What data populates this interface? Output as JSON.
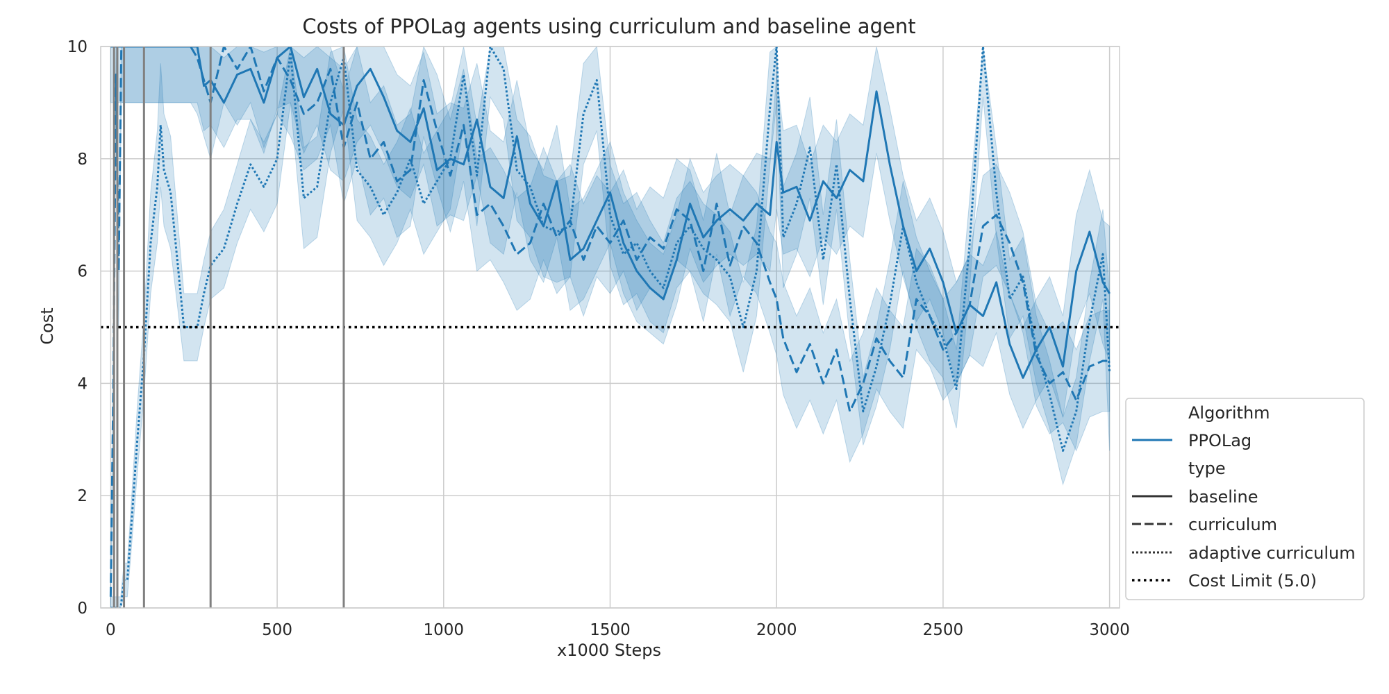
{
  "chart_data": {
    "type": "line",
    "title": "Costs of PPOLag agents using curriculum and baseline agent",
    "xlabel": "x1000 Steps",
    "ylabel": "Cost",
    "xlim": [
      -30,
      3030
    ],
    "ylim": [
      0,
      10
    ],
    "x_ticks": [
      0,
      500,
      1000,
      1500,
      2000,
      2500,
      3000
    ],
    "y_ticks": [
      0,
      2,
      4,
      6,
      8,
      10
    ],
    "grid": true,
    "legend_position": "lower-right outside",
    "color": "#1f77b4",
    "band_opacity": 0.2,
    "cost_limit": 5.0,
    "curriculum_switch_x": [
      10,
      20,
      40,
      100,
      300,
      700
    ],
    "series": [
      {
        "name": "baseline",
        "line_style": "solid",
        "x": [
          0,
          10,
          20,
          30,
          40,
          60,
          80,
          100,
          150,
          200,
          240,
          260,
          280,
          300,
          340,
          380,
          420,
          460,
          500,
          540,
          580,
          620,
          660,
          700,
          740,
          780,
          820,
          860,
          900,
          940,
          980,
          1020,
          1060,
          1100,
          1140,
          1180,
          1220,
          1260,
          1300,
          1340,
          1380,
          1420,
          1460,
          1500,
          1540,
          1580,
          1620,
          1660,
          1700,
          1740,
          1780,
          1820,
          1860,
          1900,
          1940,
          1980,
          2000,
          2020,
          2060,
          2100,
          2140,
          2180,
          2220,
          2260,
          2300,
          2340,
          2380,
          2420,
          2460,
          2500,
          2540,
          2580,
          2620,
          2660,
          2700,
          2740,
          2780,
          2820,
          2860,
          2900,
          2940,
          2980,
          3000
        ],
        "y": [
          10,
          10,
          10,
          10,
          10,
          10,
          10,
          10,
          10,
          10,
          10,
          10,
          9.3,
          9.4,
          9.0,
          9.5,
          9.6,
          9.0,
          9.8,
          10.0,
          9.1,
          9.6,
          8.8,
          8.6,
          9.3,
          9.6,
          9.1,
          8.5,
          8.3,
          8.9,
          7.8,
          8.0,
          7.9,
          8.7,
          7.5,
          7.3,
          8.4,
          7.2,
          6.8,
          7.6,
          6.2,
          6.4,
          6.9,
          7.4,
          6.5,
          6.0,
          5.7,
          5.5,
          6.2,
          7.2,
          6.6,
          6.9,
          7.1,
          6.9,
          7.2,
          7.0,
          8.3,
          7.4,
          7.5,
          6.9,
          7.6,
          7.3,
          7.8,
          7.6,
          9.2,
          7.9,
          6.8,
          6.0,
          6.4,
          5.8,
          4.9,
          5.4,
          5.2,
          5.8,
          4.7,
          4.1,
          4.6,
          5.0,
          4.3,
          6.0,
          6.7,
          5.8,
          5.6
        ],
        "band": [
          1.0,
          1.0,
          1.0,
          1.0,
          1.0,
          1.0,
          1.0,
          1.0,
          1.0,
          1.0,
          1.0,
          1.0,
          0.8,
          0.8,
          0.8,
          0.8,
          0.9,
          0.9,
          0.9,
          1.0,
          1.0,
          1.0,
          1.0,
          1.0,
          1.0,
          1.0,
          1.0,
          1.0,
          1.0,
          1.0,
          1.0,
          1.0,
          1.0,
          1.0,
          1.0,
          1.0,
          1.0,
          1.0,
          1.0,
          1.0,
          0.9,
          0.9,
          0.9,
          0.9,
          0.9,
          0.9,
          0.8,
          0.8,
          0.8,
          0.8,
          0.8,
          0.8,
          0.8,
          0.8,
          0.9,
          1.0,
          1.2,
          1.1,
          1.1,
          1.0,
          1.0,
          1.0,
          1.0,
          1.0,
          1.1,
          1.0,
          0.9,
          0.9,
          0.9,
          0.9,
          0.9,
          0.9,
          0.9,
          0.9,
          0.9,
          0.9,
          0.9,
          0.9,
          0.9,
          1.0,
          1.1,
          1.1,
          1.2
        ]
      },
      {
        "name": "curriculum",
        "line_style": "dashed",
        "x": [
          0,
          8,
          16,
          24,
          32,
          40,
          60,
          80,
          100,
          150,
          200,
          240,
          260,
          280,
          300,
          340,
          380,
          420,
          460,
          500,
          540,
          580,
          620,
          660,
          700,
          740,
          780,
          820,
          860,
          900,
          940,
          980,
          1020,
          1060,
          1100,
          1140,
          1180,
          1220,
          1260,
          1300,
          1340,
          1380,
          1420,
          1460,
          1500,
          1540,
          1580,
          1620,
          1660,
          1700,
          1740,
          1780,
          1820,
          1860,
          1900,
          1940,
          1980,
          2000,
          2020,
          2060,
          2100,
          2140,
          2180,
          2220,
          2260,
          2300,
          2340,
          2380,
          2420,
          2460,
          2500,
          2540,
          2580,
          2620,
          2660,
          2700,
          2740,
          2780,
          2820,
          2860,
          2900,
          2940,
          2980,
          3000
        ],
        "y": [
          0.2,
          4.0,
          9.5,
          6.0,
          10,
          10,
          10,
          10,
          10,
          10,
          10,
          10,
          9.8,
          9.4,
          9.0,
          10,
          9.6,
          10,
          9.2,
          9.8,
          9.4,
          8.8,
          9.0,
          9.6,
          8.2,
          9.0,
          8.0,
          8.3,
          7.6,
          7.8,
          9.4,
          8.5,
          7.7,
          8.6,
          7.0,
          7.2,
          6.8,
          6.3,
          6.5,
          7.2,
          6.6,
          6.9,
          6.2,
          6.8,
          6.5,
          6.9,
          6.2,
          6.6,
          6.4,
          7.1,
          6.9,
          6.0,
          7.2,
          6.1,
          6.8,
          6.5,
          5.8,
          5.5,
          4.8,
          4.2,
          4.7,
          4.0,
          4.6,
          3.5,
          4.0,
          4.8,
          4.4,
          4.1,
          5.5,
          5.2,
          4.6,
          4.9,
          5.4,
          6.8,
          7.0,
          6.5,
          5.8,
          4.5,
          4.0,
          4.2,
          3.7,
          4.3,
          4.4,
          4.4
        ],
        "band": [
          0.3,
          1.0,
          1.0,
          1.0,
          1.0,
          1.0,
          1.0,
          1.0,
          1.0,
          1.0,
          1.0,
          1.0,
          1.0,
          1.0,
          1.0,
          1.0,
          1.0,
          1.0,
          1.0,
          1.0,
          1.0,
          1.0,
          1.0,
          1.0,
          1.0,
          1.0,
          1.0,
          1.0,
          1.0,
          1.0,
          1.0,
          1.0,
          1.0,
          1.0,
          1.0,
          1.0,
          1.0,
          1.0,
          1.0,
          1.0,
          1.0,
          1.0,
          1.0,
          0.9,
          0.9,
          0.9,
          0.9,
          0.9,
          0.9,
          0.9,
          0.9,
          0.9,
          0.9,
          0.9,
          0.9,
          0.9,
          0.9,
          1.0,
          1.0,
          1.0,
          1.0,
          0.9,
          0.9,
          0.9,
          0.9,
          0.9,
          0.9,
          0.9,
          0.9,
          0.9,
          0.9,
          0.9,
          0.9,
          0.9,
          0.9,
          0.9,
          0.9,
          0.9,
          0.9,
          0.9,
          0.9,
          0.9,
          0.9,
          0.9
        ]
      },
      {
        "name": "adaptive curriculum",
        "line_style": "dotted",
        "x": [
          0,
          30,
          40,
          50,
          60,
          80,
          100,
          120,
          140,
          150,
          160,
          180,
          200,
          220,
          240,
          260,
          280,
          300,
          340,
          380,
          420,
          460,
          500,
          540,
          580,
          620,
          660,
          700,
          740,
          780,
          820,
          860,
          900,
          940,
          980,
          1020,
          1060,
          1100,
          1140,
          1180,
          1220,
          1260,
          1300,
          1340,
          1380,
          1420,
          1460,
          1500,
          1540,
          1580,
          1620,
          1660,
          1700,
          1740,
          1780,
          1820,
          1860,
          1900,
          1940,
          1980,
          2000,
          2020,
          2060,
          2100,
          2140,
          2180,
          2220,
          2260,
          2300,
          2340,
          2380,
          2420,
          2460,
          2500,
          2540,
          2580,
          2620,
          2660,
          2700,
          2740,
          2780,
          2820,
          2860,
          2900,
          2940,
          2980,
          3000
        ],
        "y": [
          0,
          0,
          0.5,
          0.5,
          1.3,
          3.0,
          4.5,
          6.5,
          7.5,
          8.6,
          7.8,
          7.4,
          6.2,
          5.0,
          5.0,
          5.0,
          5.6,
          6.1,
          6.4,
          7.2,
          7.9,
          7.5,
          8.0,
          9.9,
          7.3,
          7.5,
          9.0,
          9.8,
          7.8,
          7.5,
          7.0,
          7.4,
          8.0,
          7.2,
          7.6,
          8.0,
          9.5,
          7.7,
          10,
          9.6,
          7.8,
          7.5,
          6.8,
          6.7,
          6.8,
          8.8,
          9.4,
          7.0,
          6.3,
          6.5,
          6.0,
          5.7,
          6.5,
          6.8,
          6.4,
          6.2,
          5.9,
          5.0,
          6.0,
          8.9,
          10,
          6.6,
          7.2,
          8.2,
          6.2,
          7.9,
          5.5,
          3.5,
          4.3,
          5.4,
          6.8,
          5.8,
          5.2,
          4.8,
          3.9,
          6.5,
          10,
          7.4,
          5.5,
          5.9,
          4.6,
          3.8,
          2.8,
          3.5,
          5.1,
          6.3,
          4.2
        ],
        "band": [
          0.2,
          0.2,
          0.3,
          0.3,
          0.4,
          0.6,
          0.7,
          0.9,
          1.0,
          1.1,
          1.0,
          1.0,
          0.8,
          0.6,
          0.6,
          0.6,
          0.6,
          0.6,
          0.7,
          0.7,
          0.8,
          0.8,
          0.8,
          0.9,
          0.9,
          0.9,
          0.9,
          0.9,
          0.9,
          0.9,
          0.9,
          0.9,
          0.9,
          0.9,
          0.9,
          0.9,
          0.9,
          0.9,
          0.9,
          0.9,
          0.9,
          0.9,
          0.9,
          0.9,
          0.9,
          0.9,
          0.9,
          0.9,
          0.9,
          0.9,
          0.9,
          0.8,
          0.8,
          0.8,
          0.8,
          0.8,
          0.8,
          0.8,
          0.8,
          1.0,
          1.0,
          0.9,
          0.9,
          0.9,
          0.8,
          0.8,
          0.7,
          0.6,
          0.7,
          0.8,
          0.8,
          0.8,
          0.8,
          0.7,
          0.7,
          0.8,
          0.9,
          0.8,
          0.7,
          0.7,
          0.6,
          0.6,
          0.6,
          0.6,
          0.7,
          0.8,
          1.4
        ]
      }
    ],
    "legend": {
      "heading_algorithm": "Algorithm",
      "algorithm_entry": "PPOLag",
      "heading_type": "type",
      "entries": [
        "baseline",
        "curriculum",
        "adaptive curriculum",
        "Cost Limit (5.0)"
      ]
    }
  }
}
